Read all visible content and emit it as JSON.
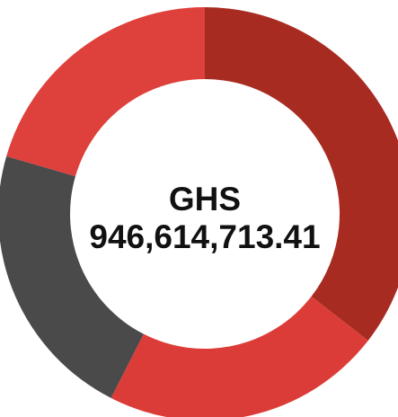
{
  "chart_data": {
    "type": "donut",
    "center_text": {
      "currency": "GHS",
      "amount": "946,614,713.41"
    },
    "values": [
      35.5,
      22,
      22,
      20.5
    ],
    "colors": [
      "#a82b22",
      "#dc3c37",
      "#4a4a4a",
      "#de403b"
    ]
  }
}
